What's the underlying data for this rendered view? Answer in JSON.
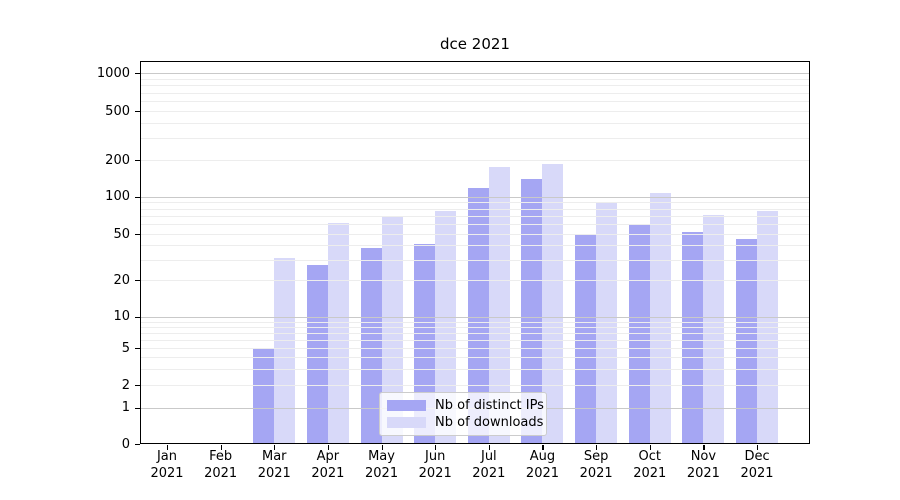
{
  "title": "dce 2021",
  "chart_data": {
    "type": "bar",
    "title": "dce 2021",
    "categories": [
      "Jan 2021",
      "Feb 2021",
      "Mar 2021",
      "Apr 2021",
      "May 2021",
      "Jun 2021",
      "Jul 2021",
      "Aug 2021",
      "Sep 2021",
      "Oct 2021",
      "Nov 2021",
      "Dec 2021"
    ],
    "series": [
      {
        "name": "Nb of distinct IPs",
        "color": "#a5a6f3",
        "values": [
          0,
          0,
          5,
          27,
          38,
          41,
          118,
          139,
          50,
          60,
          52,
          45
        ]
      },
      {
        "name": "Nb of downloads",
        "color": "#d8d9f9",
        "values": [
          0,
          0,
          31,
          61,
          69,
          76,
          176,
          187,
          91,
          108,
          71,
          76
        ]
      }
    ],
    "xlabel": "",
    "ylabel": "",
    "yscale": "symlog",
    "yticks": [
      0,
      1,
      2,
      5,
      10,
      20,
      50,
      100,
      200,
      500,
      1000
    ],
    "ylim": [
      0,
      1258
    ],
    "grid": "horizontal, major decades darker + log minors lighter, drawn above bars",
    "legend_position": "inside-bottom-center"
  },
  "colors": {
    "bar_distinct_ips": "#a5a6f3",
    "bar_downloads": "#d8d9f9",
    "grid_major": "#c9c9c9",
    "grid_minor": "#ededed",
    "axis": "#000000",
    "legend_border": "#cccccc"
  }
}
